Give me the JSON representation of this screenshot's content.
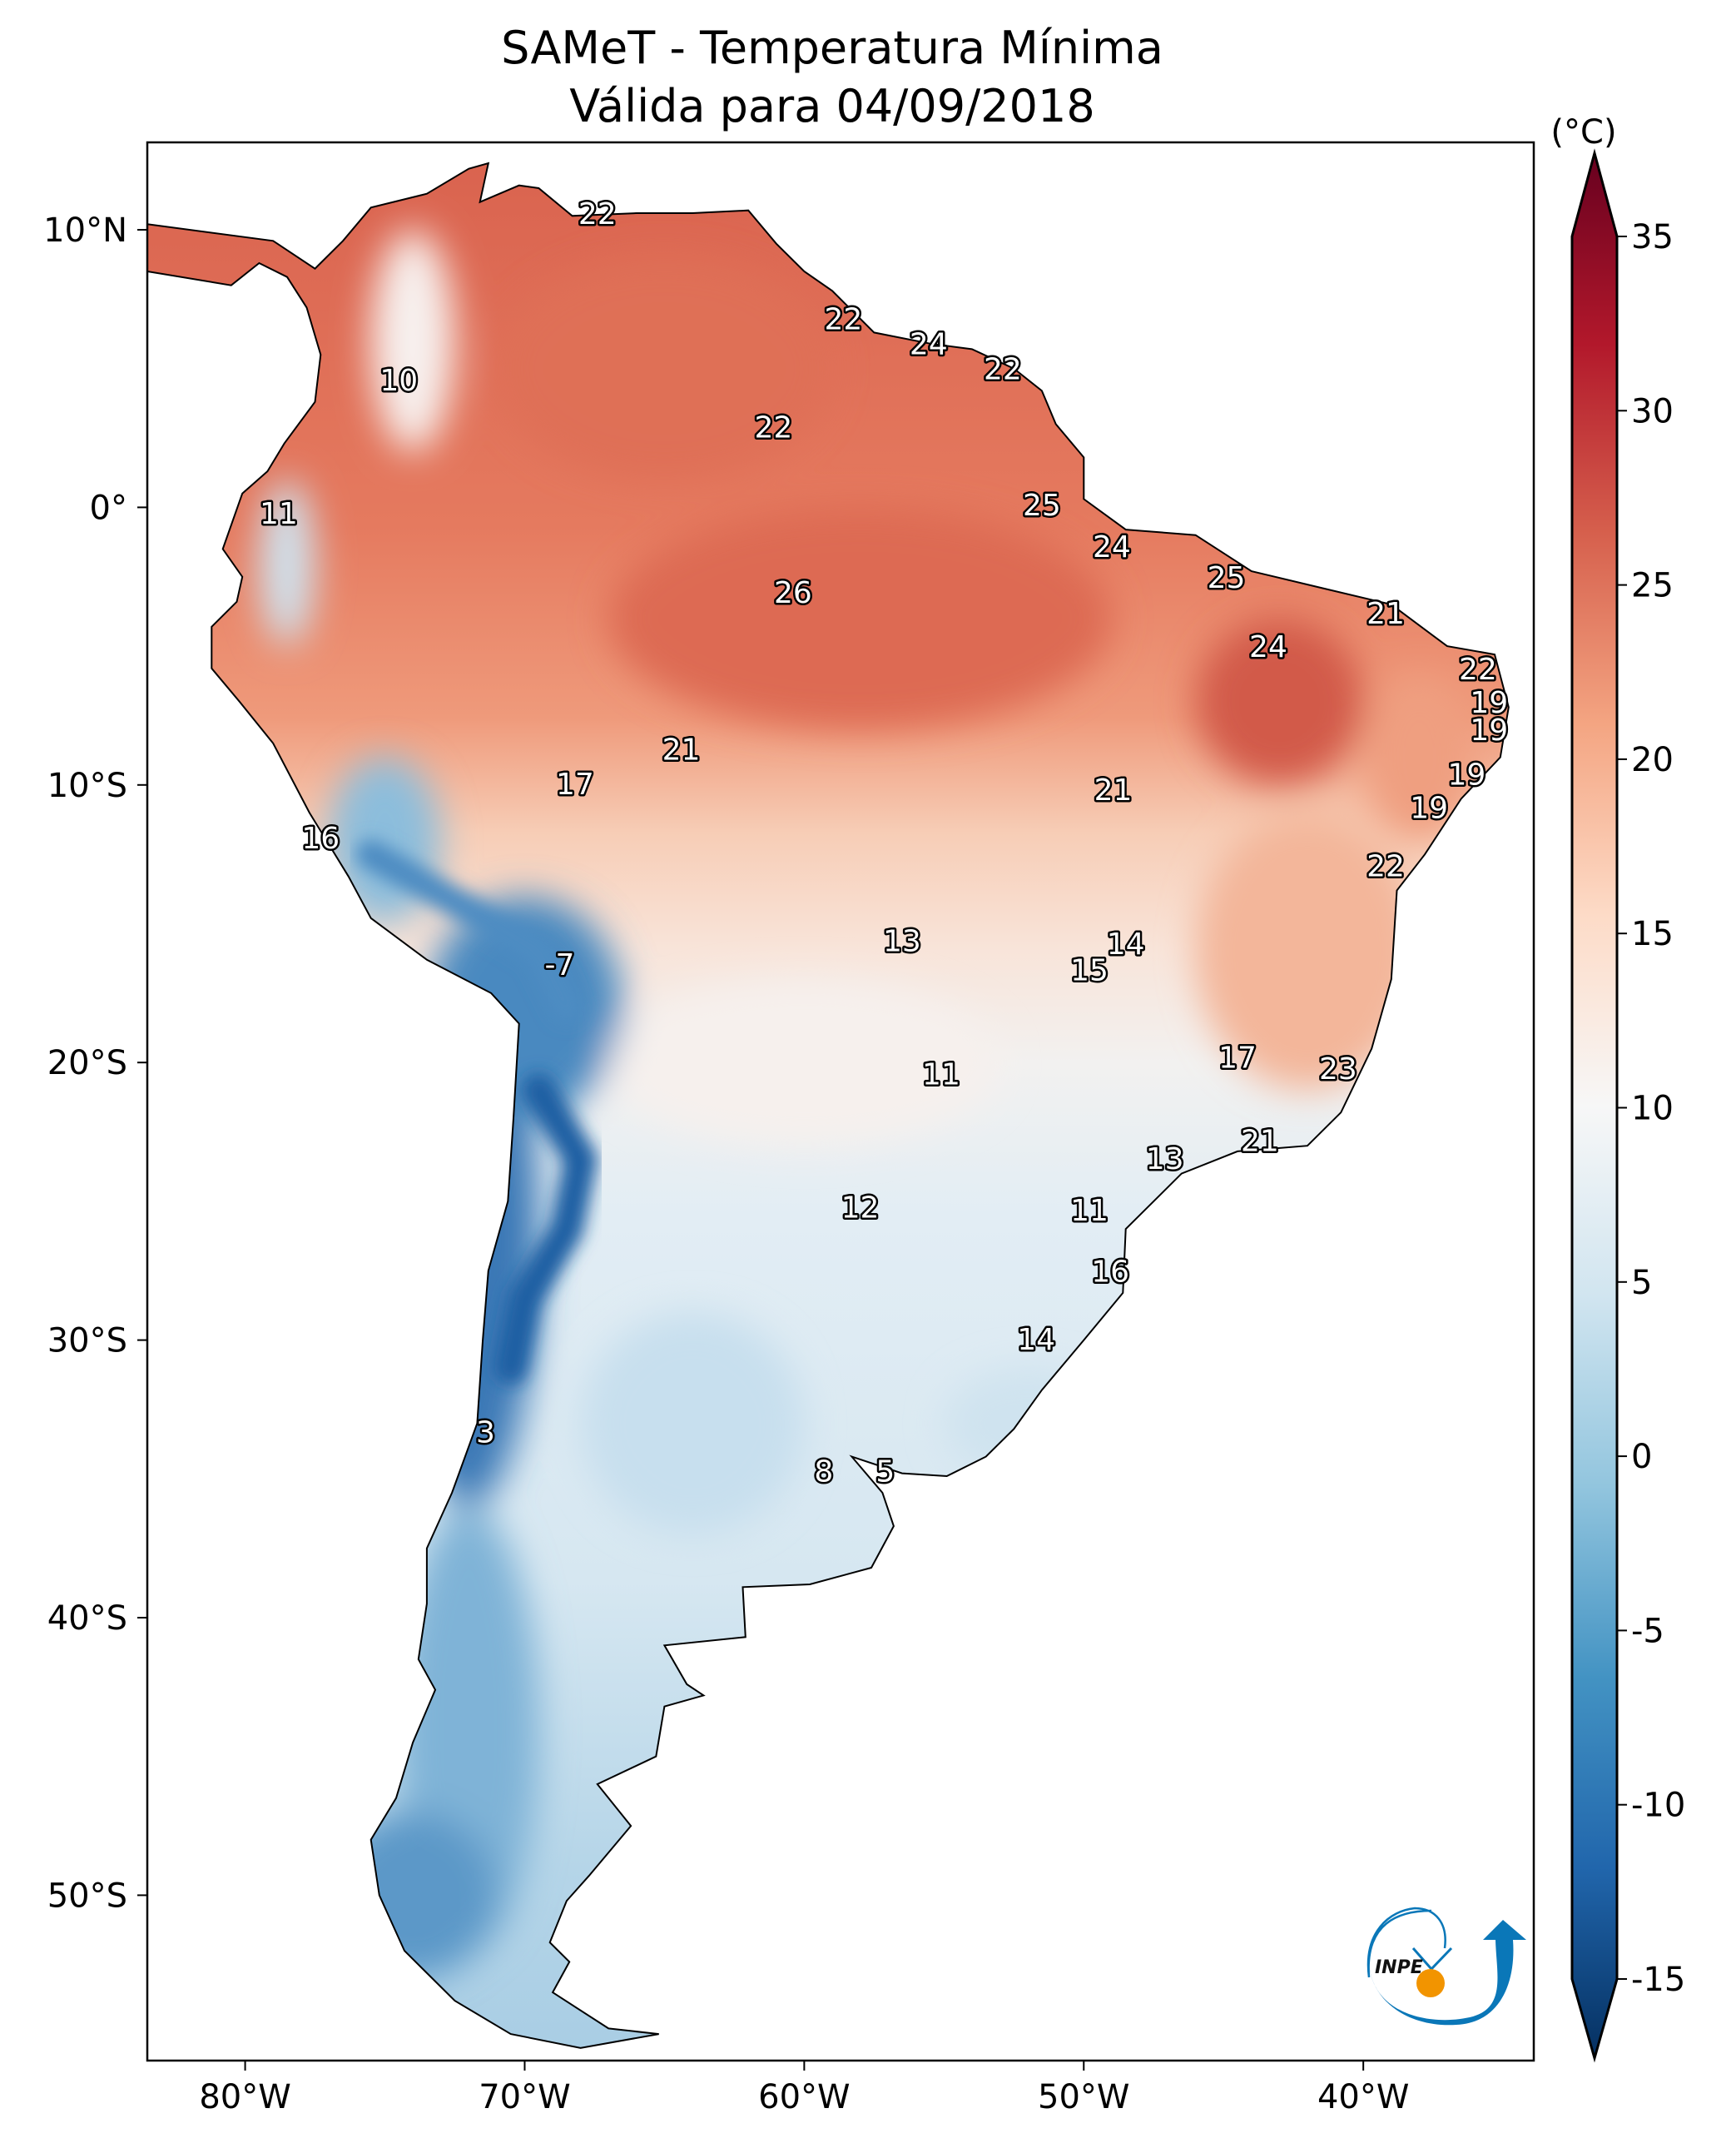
{
  "title": {
    "line1": "SAMeT - Temperatura Mínima",
    "line2": "Válida para 04/09/2018"
  },
  "map": {
    "extent_lon": [
      -83.5,
      -33.9
    ],
    "extent_lat": [
      -56,
      13.15
    ],
    "lon_ticks": [
      {
        "v": -80,
        "label": "80°W"
      },
      {
        "v": -70,
        "label": "70°W"
      },
      {
        "v": -60,
        "label": "60°W"
      },
      {
        "v": -50,
        "label": "50°W"
      },
      {
        "v": -40,
        "label": "40°W"
      }
    ],
    "lat_ticks": [
      {
        "v": 10,
        "label": "10°N"
      },
      {
        "v": 0,
        "label": "0°"
      },
      {
        "v": -10,
        "label": "10°S"
      },
      {
        "v": -20,
        "label": "20°S"
      },
      {
        "v": -30,
        "label": "30°S"
      },
      {
        "v": -40,
        "label": "40°S"
      },
      {
        "v": -50,
        "label": "50°S"
      }
    ],
    "station_values": [
      "22",
      "22",
      "24",
      "22",
      "10",
      "22",
      "11",
      "25",
      "24",
      "25",
      "21",
      "26",
      "24",
      "22",
      "19",
      "19",
      "21",
      "19",
      "17",
      "21",
      "16",
      "19",
      "22",
      "13",
      "14",
      "-7",
      "15",
      "17",
      "11",
      "23",
      "21",
      "13",
      "12",
      "11",
      "16",
      "14",
      "3",
      "8",
      "5"
    ]
  },
  "colorbar": {
    "unit": "(°C)",
    "range": [
      -15,
      35
    ],
    "extend": "both",
    "colormap": "RdBu_r",
    "ticks": [
      "35",
      "30",
      "25",
      "20",
      "15",
      "10",
      "5",
      "0",
      "-5",
      "-10",
      "-15"
    ],
    "colors": [
      "#053061",
      "#2166ac",
      "#4393c3",
      "#92c5de",
      "#d1e5f0",
      "#f7f7f7",
      "#fddbc7",
      "#f4a582",
      "#d6604d",
      "#b2182b",
      "#67001f"
    ]
  },
  "logo": {
    "text": "INPE",
    "blue": "#0a77b8",
    "orange": "#f29400"
  }
}
